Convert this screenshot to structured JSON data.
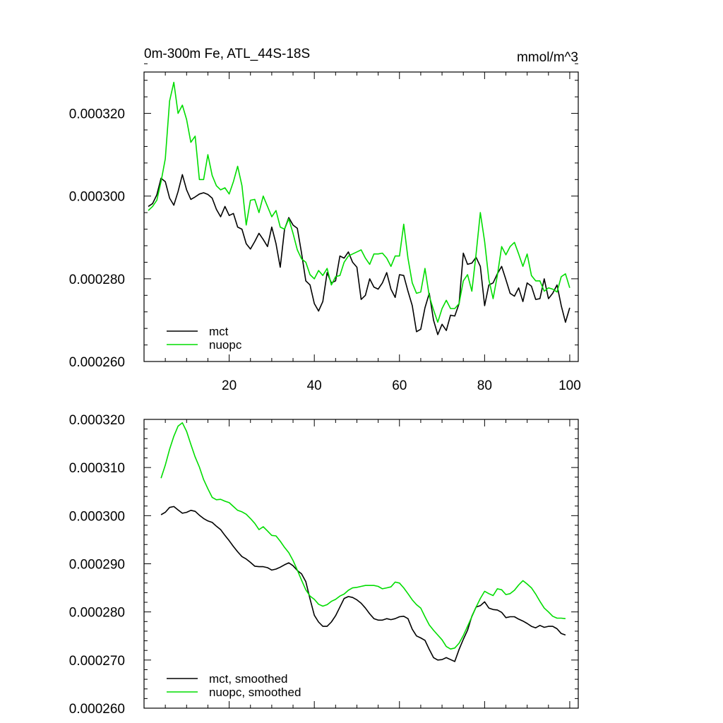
{
  "chart_data": [
    {
      "type": "line",
      "title": "0m-300m Fe, ATL_44S-18S",
      "units": "mmol/m^3",
      "xlabel": "",
      "ylabel": "",
      "xlim": [
        0,
        102
      ],
      "ylim": [
        0.00026,
        0.00033
      ],
      "xticks": [
        20,
        40,
        60,
        80,
        100
      ],
      "xtick_labels": [
        "20",
        "40",
        "60",
        "80",
        "100"
      ],
      "yticks": [
        0.00026,
        0.00028,
        0.0003,
        0.00032
      ],
      "ytick_labels": [
        "0.000260",
        "0.000280",
        "0.000300",
        "0.000320"
      ],
      "legend_position": "bottom-left",
      "series": [
        {
          "name": "mct",
          "color": "#000000",
          "x_start": 1,
          "values": [
            0.0002975,
            0.0002982,
            0.0003003,
            0.0003043,
            0.0003035,
            0.0002995,
            0.0002978,
            0.0003011,
            0.0003052,
            0.0003015,
            0.0002992,
            0.0002998,
            0.0003005,
            0.0003008,
            0.0003004,
            0.0002995,
            0.0002968,
            0.000295,
            0.0002975,
            0.0002953,
            0.0002958,
            0.0002925,
            0.000292,
            0.0002885,
            0.0002872,
            0.000289,
            0.000291,
            0.0002895,
            0.0002878,
            0.0002925,
            0.0002885,
            0.0002828,
            0.000292,
            0.0002948,
            0.000293,
            0.0002922,
            0.0002862,
            0.0002795,
            0.0002785,
            0.000274,
            0.0002722,
            0.0002745,
            0.0002815,
            0.000279,
            0.0002795,
            0.0002855,
            0.000285,
            0.0002865,
            0.000284,
            0.0002828,
            0.000275,
            0.000276,
            0.00028,
            0.000278,
            0.0002775,
            0.000279,
            0.0002815,
            0.0002775,
            0.0002755,
            0.000281,
            0.0002808,
            0.000277,
            0.0002735,
            0.0002672,
            0.0002678,
            0.000273,
            0.0002765,
            0.00027,
            0.0002665,
            0.000269,
            0.0002675,
            0.0002712,
            0.000271,
            0.000274,
            0.0002862,
            0.0002835,
            0.0002838,
            0.0002852,
            0.000283,
            0.0002735,
            0.0002785,
            0.000279,
            0.0002812,
            0.000283,
            0.0002798,
            0.0002765,
            0.0002758,
            0.0002778,
            0.0002745,
            0.000279,
            0.0002782,
            0.000275,
            0.0002752,
            0.00028,
            0.0002752,
            0.0002765,
            0.0002785,
            0.0002735,
            0.0002695,
            0.000273
          ]
        },
        {
          "name": "nuopc",
          "color": "#00dd00",
          "x_start": 1,
          "values": [
            0.0002965,
            0.0002975,
            0.000299,
            0.0003035,
            0.000309,
            0.000323,
            0.0003275,
            0.00032,
            0.000322,
            0.0003185,
            0.000313,
            0.0003145,
            0.000304,
            0.000304,
            0.00031,
            0.000305,
            0.0003025,
            0.0003015,
            0.000302,
            0.0003005,
            0.0003035,
            0.0003072,
            0.0003025,
            0.000293,
            0.000299,
            0.0002992,
            0.000296,
            0.0003,
            0.0002975,
            0.000295,
            0.0002965,
            0.0002925,
            0.000292,
            0.0002945,
            0.000291,
            0.000287,
            0.0002848,
            0.000284,
            0.000281,
            0.00028,
            0.000282,
            0.0002808,
            0.0002825,
            0.0002785,
            0.0002805,
            0.0002808,
            0.000284,
            0.0002855,
            0.000286,
            0.0002865,
            0.000287,
            0.000285,
            0.0002835,
            0.000286,
            0.000286,
            0.0002862,
            0.000285,
            0.000283,
            0.0002855,
            0.0002855,
            0.0002932,
            0.000285,
            0.000279,
            0.0002765,
            0.0002768,
            0.0002825,
            0.0002758,
            0.0002725,
            0.0002695,
            0.0002728,
            0.0002748,
            0.0002728,
            0.0002728,
            0.000274,
            0.0002795,
            0.000281,
            0.000277,
            0.000286,
            0.000296,
            0.000289,
            0.0002798,
            0.0002752,
            0.0002808,
            0.0002878,
            0.0002858,
            0.0002878,
            0.0002888,
            0.000286,
            0.000283,
            0.000286,
            0.0002808,
            0.0002795,
            0.0002795,
            0.000277,
            0.0002778,
            0.0002775,
            0.0002768,
            0.0002805,
            0.0002812,
            0.0002778
          ]
        }
      ]
    },
    {
      "type": "line",
      "title": "",
      "units": "",
      "xlabel": "",
      "ylabel": "",
      "xlim": [
        0,
        102
      ],
      "ylim": [
        0.00026,
        0.00032
      ],
      "xticks": [
        20,
        40,
        60,
        80,
        100
      ],
      "xtick_labels": [],
      "yticks": [
        0.00026,
        0.00027,
        0.00028,
        0.00029,
        0.0003,
        0.00031,
        0.00032
      ],
      "ytick_labels": [
        "0.000260",
        "0.000270",
        "0.000280",
        "0.000290",
        "0.000300",
        "0.000310",
        "0.000320"
      ],
      "legend_position": "bottom-left",
      "series": [
        {
          "name": "mct, smoothed",
          "color": "#000000",
          "x_start": 4,
          "values": [
            0.0003002,
            0.0003007,
            0.0003017,
            0.0003019,
            0.0003012,
            0.0003005,
            0.0003007,
            0.0003011,
            0.0003009,
            0.0003001,
            0.0002994,
            0.0002989,
            0.0002986,
            0.0002978,
            0.0002971,
            0.0002959,
            0.0002948,
            0.0002936,
            0.0002925,
            0.0002915,
            0.000291,
            0.0002903,
            0.0002895,
            0.0002894,
            0.0002894,
            0.0002892,
            0.0002887,
            0.0002889,
            0.0002893,
            0.0002898,
            0.0002902,
            0.0002896,
            0.0002886,
            0.0002879,
            0.0002863,
            0.0002827,
            0.0002793,
            0.0002779,
            0.000277,
            0.000277,
            0.0002779,
            0.0002792,
            0.000281,
            0.0002828,
            0.0002832,
            0.000283,
            0.0002825,
            0.0002818,
            0.0002808,
            0.0002796,
            0.0002786,
            0.0002783,
            0.0002783,
            0.0002786,
            0.0002784,
            0.0002786,
            0.000279,
            0.0002791,
            0.0002786,
            0.0002764,
            0.000275,
            0.0002746,
            0.0002741,
            0.0002722,
            0.0002705,
            0.00027,
            0.0002701,
            0.0002705,
            0.0002701,
            0.0002697,
            0.0002722,
            0.0002743,
            0.0002762,
            0.0002791,
            0.000281,
            0.0002813,
            0.0002821,
            0.0002808,
            0.0002805,
            0.0002804,
            0.0002799,
            0.0002788,
            0.000279,
            0.000279,
            0.0002785,
            0.0002781,
            0.0002776,
            0.000277,
            0.0002767,
            0.0002772,
            0.0002768,
            0.000277,
            0.000277,
            0.0002765,
            0.0002755,
            0.0002752
          ]
        },
        {
          "name": "nuopc, smoothed",
          "color": "#00dd00",
          "x_start": 4,
          "values": [
            0.0003078,
            0.0003105,
            0.0003138,
            0.0003165,
            0.0003186,
            0.0003193,
            0.0003175,
            0.0003148,
            0.0003122,
            0.0003101,
            0.0003075,
            0.0003056,
            0.0003038,
            0.0003033,
            0.0003034,
            0.000303,
            0.0003027,
            0.0003019,
            0.0003011,
            0.0003008,
            0.0003003,
            0.0002994,
            0.0002984,
            0.0002971,
            0.0002977,
            0.0002968,
            0.0002959,
            0.0002958,
            0.0002947,
            0.0002934,
            0.0002923,
            0.0002907,
            0.0002887,
            0.0002866,
            0.0002846,
            0.0002833,
            0.0002826,
            0.0002816,
            0.0002812,
            0.0002815,
            0.0002822,
            0.0002826,
            0.0002833,
            0.0002837,
            0.0002845,
            0.000285,
            0.0002851,
            0.0002853,
            0.0002855,
            0.0002855,
            0.0002855,
            0.0002853,
            0.0002848,
            0.000285,
            0.0002852,
            0.0002862,
            0.000286,
            0.000285,
            0.0002838,
            0.0002825,
            0.0002815,
            0.0002808,
            0.000279,
            0.0002773,
            0.0002762,
            0.0002752,
            0.0002742,
            0.0002728,
            0.0002723,
            0.0002725,
            0.0002735,
            0.0002751,
            0.000277,
            0.000279,
            0.000281,
            0.0002828,
            0.0002843,
            0.0002838,
            0.0002834,
            0.0002848,
            0.0002846,
            0.0002836,
            0.0002838,
            0.0002845,
            0.0002856,
            0.0002865,
            0.0002858,
            0.000285,
            0.0002837,
            0.0002822,
            0.0002808,
            0.00028,
            0.0002791,
            0.0002787,
            0.0002787,
            0.0002786
          ]
        }
      ]
    }
  ]
}
